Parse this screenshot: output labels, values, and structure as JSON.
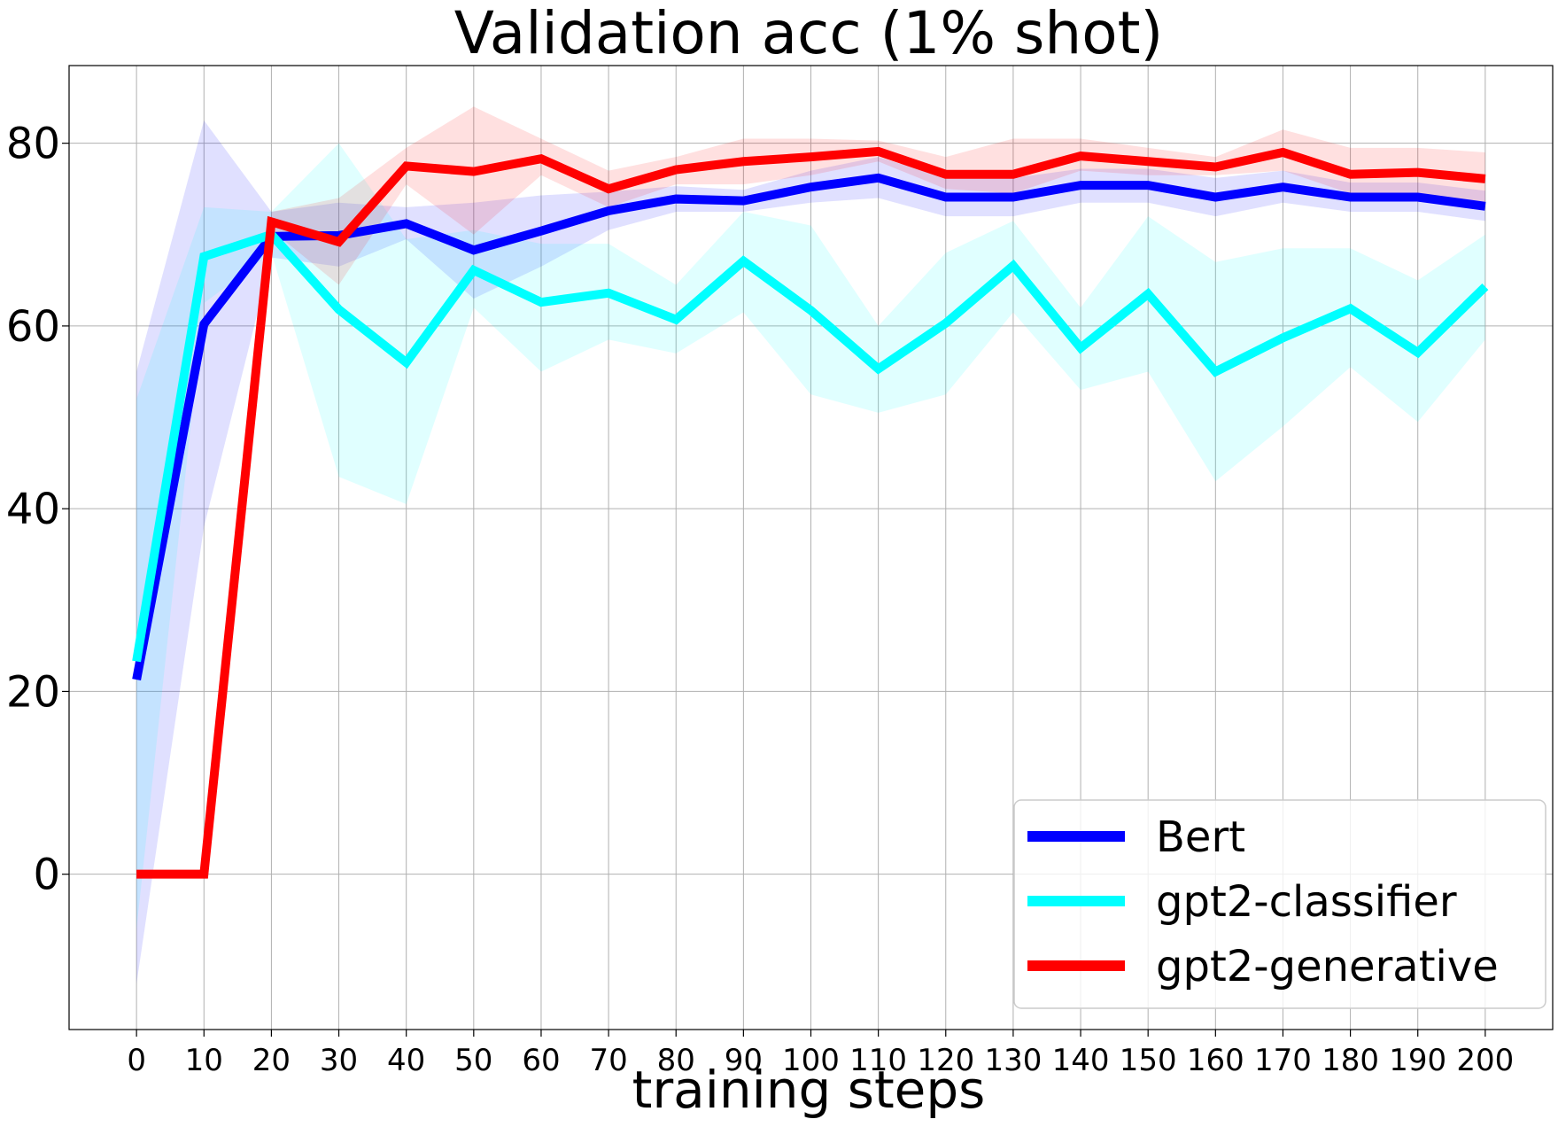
{
  "chart_data": {
    "type": "line",
    "title": "Validation acc (1% shot)",
    "xlabel": "training steps",
    "ylabel": "",
    "x": [
      0,
      10,
      20,
      30,
      40,
      50,
      60,
      70,
      80,
      90,
      100,
      110,
      120,
      130,
      140,
      150,
      160,
      170,
      180,
      190,
      200
    ],
    "xticks": [
      "0",
      "10",
      "20",
      "30",
      "40",
      "50",
      "60",
      "70",
      "80",
      "90",
      "100",
      "110",
      "120",
      "130",
      "140",
      "150",
      "160",
      "170",
      "180",
      "190",
      "200"
    ],
    "yticks": [
      0,
      20,
      40,
      60,
      80
    ],
    "xlim": [
      -10,
      210
    ],
    "ylim": [
      -17,
      88.5
    ],
    "grid": true,
    "legend_position": "lower-right",
    "series": [
      {
        "name": "Bert",
        "color": "#0000ff",
        "band_color": "#0000ff",
        "values": [
          21.3,
          60.2,
          69.8,
          69.9,
          71.2,
          68.3,
          70.4,
          72.6,
          73.9,
          73.7,
          75.2,
          76.2,
          74.1,
          74.1,
          75.4,
          75.4,
          74.1,
          75.2,
          74.1,
          74.1,
          73.1
        ],
        "lower": [
          -12.0,
          38.0,
          67.5,
          66.5,
          69.5,
          63.0,
          66.5,
          70.5,
          72.5,
          72.5,
          73.5,
          74.0,
          72.0,
          72.0,
          73.5,
          73.5,
          72.0,
          73.5,
          72.5,
          72.5,
          71.5
        ],
        "upper": [
          55.0,
          82.5,
          72.5,
          73.5,
          73.0,
          73.5,
          74.3,
          74.7,
          75.3,
          74.9,
          77.0,
          78.5,
          76.2,
          76.2,
          77.2,
          77.2,
          76.2,
          77.0,
          75.7,
          75.7,
          74.8
        ]
      },
      {
        "name": "gpt2-classifier",
        "color": "#00ffff",
        "band_color": "#00ffff",
        "values": [
          23.3,
          67.6,
          70.0,
          61.8,
          56.0,
          66.1,
          62.6,
          63.6,
          60.7,
          67.1,
          61.7,
          55.3,
          60.3,
          66.6,
          57.6,
          63.5,
          55.0,
          58.7,
          61.9,
          57.1,
          64.3
        ],
        "lower": [
          -6.0,
          62.5,
          68.0,
          43.5,
          40.5,
          62.0,
          55.0,
          58.5,
          57.0,
          61.5,
          52.5,
          50.5,
          52.5,
          61.5,
          53.0,
          55.0,
          43.0,
          49.0,
          55.5,
          49.5,
          58.5
        ],
        "upper": [
          52.0,
          73.0,
          72.5,
          80.0,
          69.5,
          70.5,
          69.0,
          69.0,
          64.5,
          72.5,
          71.0,
          60.0,
          68.0,
          71.5,
          62.0,
          72.0,
          67.0,
          68.5,
          68.5,
          65.0,
          70.0
        ]
      },
      {
        "name": "gpt2-generative",
        "color": "#ff0000",
        "band_color": "#ff0000",
        "values": [
          0.0,
          0.0,
          71.4,
          69.2,
          77.5,
          76.9,
          78.3,
          75.0,
          77.1,
          78.0,
          78.5,
          79.1,
          76.6,
          76.6,
          78.6,
          78.0,
          77.4,
          79.0,
          76.6,
          76.8,
          76.1
        ],
        "lower": [
          0.0,
          0.0,
          70.5,
          64.5,
          75.5,
          70.0,
          76.5,
          73.0,
          75.5,
          75.5,
          76.5,
          78.0,
          75.0,
          74.5,
          77.0,
          76.5,
          76.5,
          77.0,
          74.5,
          74.5,
          73.5
        ],
        "upper": [
          0.0,
          0.0,
          72.5,
          74.0,
          79.5,
          84.0,
          80.5,
          77.0,
          78.5,
          80.5,
          80.5,
          80.3,
          78.5,
          80.5,
          80.5,
          79.5,
          78.5,
          81.5,
          79.5,
          79.5,
          79.0
        ]
      }
    ]
  }
}
